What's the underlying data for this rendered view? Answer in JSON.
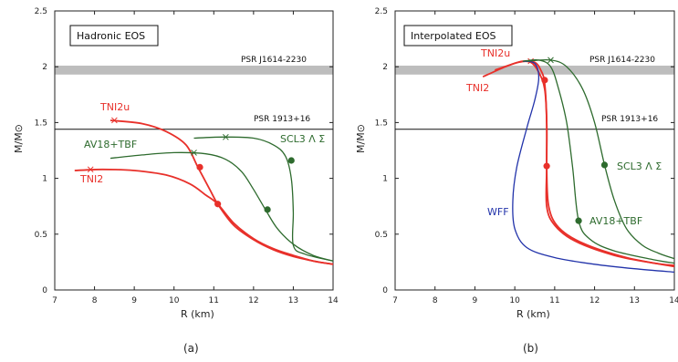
{
  "chart_data": [
    {
      "type": "line",
      "caption": "(a)",
      "title_box": "Hadronic EOS",
      "xlabel": "R (km)",
      "ylabel": "M/M⊙",
      "xlim": [
        7,
        14
      ],
      "ylim": [
        0,
        2.5
      ],
      "xticks": [
        "7",
        "8",
        "9",
        "10",
        "11",
        "12",
        "13",
        "14"
      ],
      "yticks": [
        "0",
        "0.5",
        "1",
        "1.5",
        "2",
        "2.5"
      ],
      "hlines": [
        {
          "label": "PSR J1614-2230",
          "y": 1.97,
          "band": [
            1.93,
            2.01
          ]
        },
        {
          "label": "PSR 1913+16",
          "y": 1.44
        }
      ],
      "series": [
        {
          "name": "TNI2u",
          "color": "#e8302a",
          "points": [
            [
              8.4,
              1.52
            ],
            [
              9.2,
              1.49
            ],
            [
              9.8,
              1.42
            ],
            [
              10.3,
              1.3
            ],
            [
              10.6,
              1.1
            ],
            [
              10.9,
              0.9
            ],
            [
              11.1,
              0.77
            ],
            [
              11.5,
              0.58
            ],
            [
              12.0,
              0.45
            ],
            [
              12.5,
              0.36
            ],
            [
              13.0,
              0.3
            ],
            [
              13.5,
              0.26
            ],
            [
              14.0,
              0.23
            ]
          ],
          "markers": [
            [
              10.65,
              1.1
            ],
            [
              11.1,
              0.77
            ]
          ],
          "cross": [
            8.5,
            1.52
          ]
        },
        {
          "name": "TNI2",
          "color": "#e8302a",
          "points": [
            [
              7.5,
              1.07
            ],
            [
              8.2,
              1.08
            ],
            [
              9.0,
              1.07
            ],
            [
              9.8,
              1.03
            ],
            [
              10.4,
              0.95
            ],
            [
              10.8,
              0.85
            ],
            [
              11.1,
              0.77
            ],
            [
              11.5,
              0.6
            ],
            [
              12.0,
              0.46
            ],
            [
              12.5,
              0.37
            ],
            [
              13.0,
              0.31
            ],
            [
              13.5,
              0.26
            ],
            [
              14.0,
              0.23
            ]
          ],
          "markers": [],
          "cross": [
            7.9,
            1.08
          ]
        },
        {
          "name": "AV18+TBF",
          "color": "#2e6b2e",
          "points": [
            [
              8.4,
              1.18
            ],
            [
              9.2,
              1.21
            ],
            [
              10.0,
              1.23
            ],
            [
              10.8,
              1.22
            ],
            [
              11.3,
              1.17
            ],
            [
              11.7,
              1.06
            ],
            [
              12.0,
              0.9
            ],
            [
              12.3,
              0.72
            ],
            [
              12.6,
              0.55
            ],
            [
              13.0,
              0.41
            ],
            [
              13.5,
              0.31
            ],
            [
              14.0,
              0.26
            ]
          ],
          "markers": [
            [
              12.35,
              0.72
            ]
          ],
          "cross": [
            10.5,
            1.23
          ]
        },
        {
          "name": "SCL3 Λ Σ",
          "color": "#2e6b2e",
          "points": [
            [
              10.5,
              1.36
            ],
            [
              11.2,
              1.37
            ],
            [
              12.0,
              1.36
            ],
            [
              12.5,
              1.3
            ],
            [
              12.8,
              1.2
            ],
            [
              12.95,
              1.0
            ],
            [
              13.0,
              0.7
            ],
            [
              13.0,
              0.4
            ],
            [
              13.3,
              0.32
            ],
            [
              14.0,
              0.26
            ]
          ],
          "markers": [
            [
              12.95,
              1.16
            ]
          ],
          "cross": [
            11.3,
            1.37
          ]
        }
      ]
    },
    {
      "type": "line",
      "caption": "(b)",
      "title_box": "Interpolated EOS",
      "xlabel": "R (km)",
      "ylabel": "M/M⊙",
      "xlim": [
        7,
        14
      ],
      "ylim": [
        0,
        2.5
      ],
      "xticks": [
        "7",
        "8",
        "9",
        "10",
        "11",
        "12",
        "13",
        "14"
      ],
      "yticks": [
        "0",
        "0.5",
        "1",
        "1.5",
        "2",
        "2.5"
      ],
      "hlines": [
        {
          "label": "PSR J1614-2230",
          "y": 1.97,
          "band": [
            1.93,
            2.01
          ]
        },
        {
          "label": "PSR 1913+16",
          "y": 1.44
        }
      ],
      "series": [
        {
          "name": "TNI2u",
          "color": "#e8302a",
          "points": [
            [
              9.5,
              1.97
            ],
            [
              9.9,
              2.02
            ],
            [
              10.2,
              2.05
            ],
            [
              10.5,
              2.04
            ],
            [
              10.65,
              1.97
            ],
            [
              10.75,
              1.85
            ],
            [
              10.8,
              1.5
            ],
            [
              10.8,
              1.1
            ],
            [
              10.8,
              0.75
            ],
            [
              11.0,
              0.58
            ],
            [
              11.5,
              0.44
            ],
            [
              12.5,
              0.31
            ],
            [
              13.5,
              0.24
            ],
            [
              14.0,
              0.22
            ]
          ],
          "markers": [
            [
              10.75,
              1.88
            ],
            [
              10.8,
              1.11
            ]
          ],
          "cross": [
            10.4,
            2.05
          ]
        },
        {
          "name": "TNI2",
          "color": "#e8302a",
          "points": [
            [
              9.2,
              1.91
            ],
            [
              9.7,
              1.99
            ],
            [
              10.1,
              2.04
            ],
            [
              10.4,
              2.04
            ],
            [
              10.6,
              1.95
            ],
            [
              10.75,
              1.8
            ],
            [
              10.8,
              1.5
            ],
            [
              10.8,
              1.1
            ],
            [
              10.85,
              0.75
            ],
            [
              11.1,
              0.56
            ],
            [
              11.7,
              0.42
            ],
            [
              12.8,
              0.29
            ],
            [
              14.0,
              0.21
            ]
          ],
          "markers": [],
          "cross": null
        },
        {
          "name": "WFF",
          "color": "#2233aa",
          "points": [
            [
              10.2,
              2.05
            ],
            [
              10.5,
              2.03
            ],
            [
              10.6,
              1.9
            ],
            [
              10.5,
              1.7
            ],
            [
              10.3,
              1.45
            ],
            [
              10.05,
              1.1
            ],
            [
              9.95,
              0.8
            ],
            [
              10.0,
              0.55
            ],
            [
              10.3,
              0.38
            ],
            [
              11.0,
              0.29
            ],
            [
              12.0,
              0.23
            ],
            [
              13.0,
              0.19
            ],
            [
              14.0,
              0.16
            ]
          ],
          "markers": [],
          "cross": null
        },
        {
          "name": "AV18+TBF",
          "color": "#2e6b2e",
          "points": [
            [
              10.2,
              2.05
            ],
            [
              10.6,
              2.06
            ],
            [
              10.9,
              2.0
            ],
            [
              11.1,
              1.8
            ],
            [
              11.3,
              1.5
            ],
            [
              11.45,
              1.1
            ],
            [
              11.6,
              0.62
            ],
            [
              11.9,
              0.45
            ],
            [
              12.5,
              0.35
            ],
            [
              13.5,
              0.27
            ],
            [
              14.0,
              0.24
            ]
          ],
          "markers": [
            [
              11.6,
              0.62
            ]
          ],
          "cross": null
        },
        {
          "name": "SCL3 Λ Σ",
          "color": "#2e6b2e",
          "points": [
            [
              10.3,
              2.05
            ],
            [
              10.9,
              2.06
            ],
            [
              11.3,
              2.0
            ],
            [
              11.7,
              1.8
            ],
            [
              12.0,
              1.5
            ],
            [
              12.25,
              1.12
            ],
            [
              12.5,
              0.8
            ],
            [
              12.8,
              0.55
            ],
            [
              13.2,
              0.4
            ],
            [
              13.6,
              0.33
            ],
            [
              14.0,
              0.28
            ]
          ],
          "markers": [
            [
              12.25,
              1.12
            ]
          ],
          "cross": [
            10.9,
            2.06
          ]
        }
      ]
    }
  ],
  "labels": {
    "a": {
      "tni2u": "TNI2u",
      "tni2": "TNI2",
      "av18": "AV18+TBF",
      "scl3": "SCL3 Λ Σ",
      "psr1": "PSR J1614-2230",
      "psr2": "PSR 1913+16"
    },
    "b": {
      "tni2u": "TNI2u",
      "tni2": "TNI2",
      "wff": "WFF",
      "av18": "AV18+TBF",
      "scl3": "SCL3 Λ Σ",
      "psr1": "PSR J1614-2230",
      "psr2": "PSR 1913+16"
    }
  }
}
